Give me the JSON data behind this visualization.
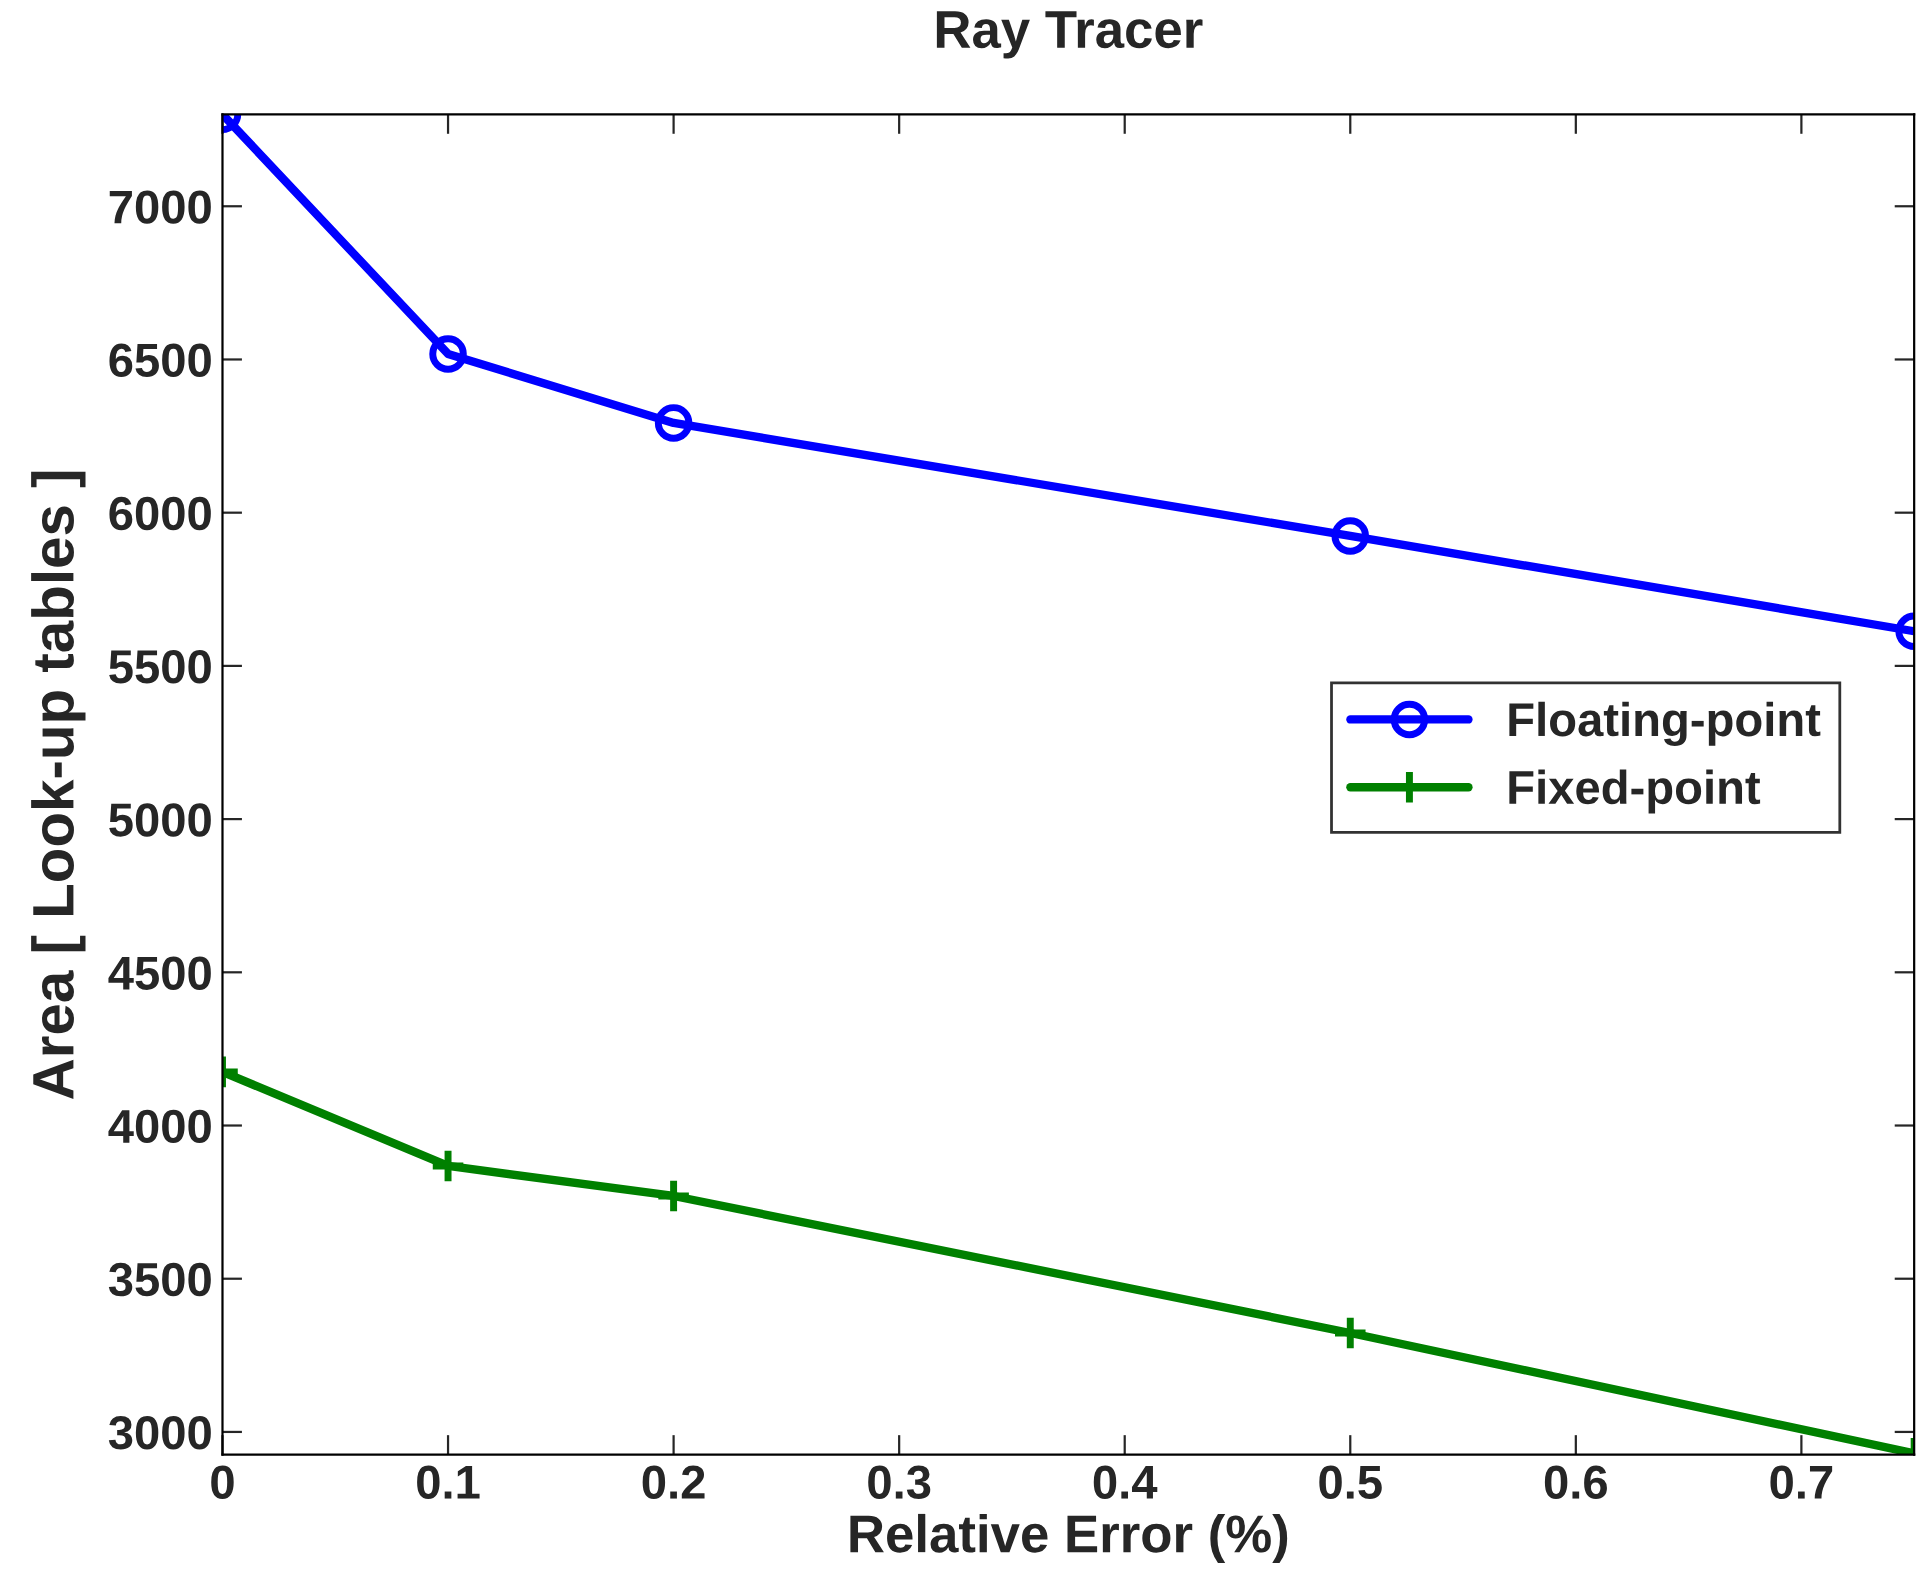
{
  "chart_data": {
    "type": "line",
    "title": "Ray Tracer",
    "xlabel": "Relative Error (%)",
    "ylabel": "Area [ Look-up tables ]",
    "x": [
      0,
      0.1,
      0.2,
      0.5,
      0.75
    ],
    "series": [
      {
        "name": "Floating-point",
        "color": "#0000ff",
        "marker": "circle",
        "values": [
          7300,
          6518,
          6293,
          5924,
          5613
        ]
      },
      {
        "name": "Fixed-point",
        "color": "#008000",
        "marker": "cross",
        "values": [
          4175,
          3868,
          3770,
          3323,
          2930
        ]
      }
    ],
    "xlim": [
      0,
      0.75
    ],
    "xticks": [
      0,
      0.1,
      0.2,
      0.3,
      0.4,
      0.5,
      0.6,
      0.7
    ],
    "ylim": [
      2926,
      7300
    ],
    "yticks": [
      3000,
      3500,
      4000,
      4500,
      5000,
      5500,
      6000,
      6500,
      7000
    ],
    "grid": false,
    "legend": "right",
    "line_style": "solid"
  }
}
